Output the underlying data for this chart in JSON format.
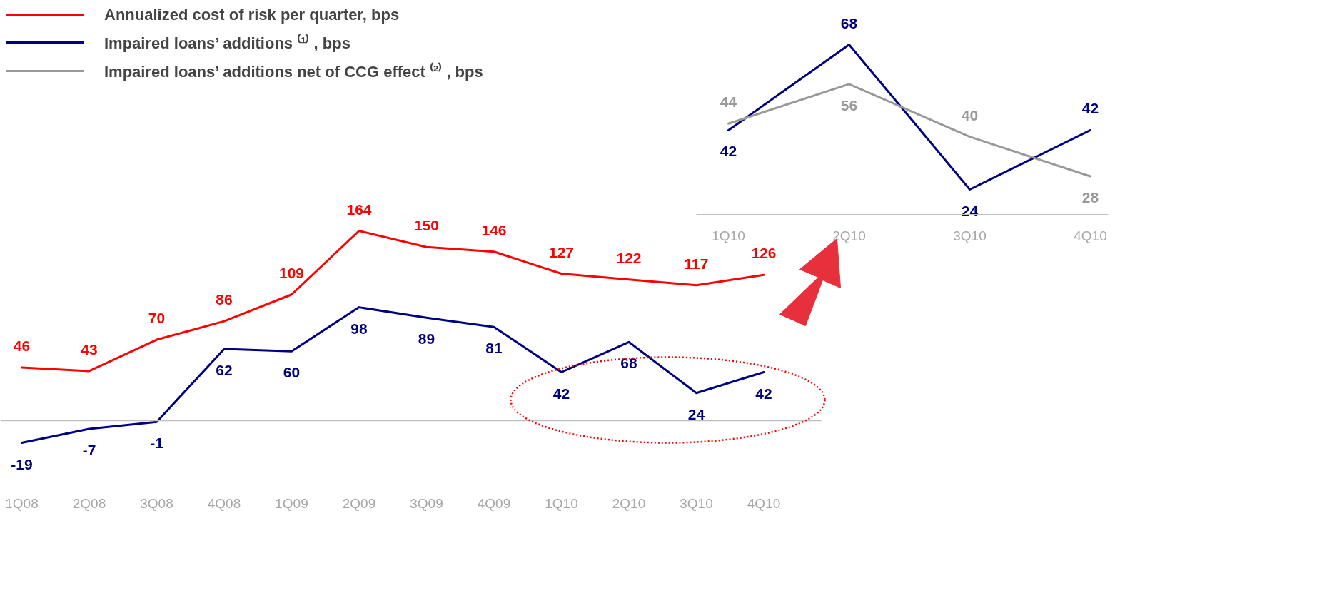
{
  "chart_data": [
    {
      "type": "line",
      "categories": [
        "1Q08",
        "2Q08",
        "3Q08",
        "4Q08",
        "1Q09",
        "2Q09",
        "3Q09",
        "4Q09",
        "1Q10",
        "2Q10",
        "3Q10",
        "4Q10"
      ],
      "data_labels": true,
      "legend": "top left",
      "series": [
        {
          "name": "Annualized cost of risk per quarter, bps",
          "color": "#ff0000",
          "values": [
            46,
            43,
            70,
            86,
            109,
            164,
            150,
            146,
            127,
            122,
            117,
            126
          ]
        },
        {
          "name": "Impaired loans’ additions ⁽¹⁾ , bps",
          "color": "#000080",
          "values": [
            -19,
            -7,
            -1,
            62,
            60,
            98,
            89,
            81,
            42,
            68,
            24,
            42
          ]
        }
      ]
    },
    {
      "type": "line",
      "categories": [
        "1Q10",
        "2Q10",
        "3Q10",
        "4Q10"
      ],
      "data_labels": true,
      "series": [
        {
          "color": "#000080",
          "values": [
            42,
            68,
            24,
            42
          ]
        },
        {
          "name": "Impaired loans’ additions net of CCG effect ⁽²⁾ , bps",
          "color": "#999999",
          "values": [
            44,
            56,
            40,
            28
          ]
        }
      ]
    }
  ]
}
